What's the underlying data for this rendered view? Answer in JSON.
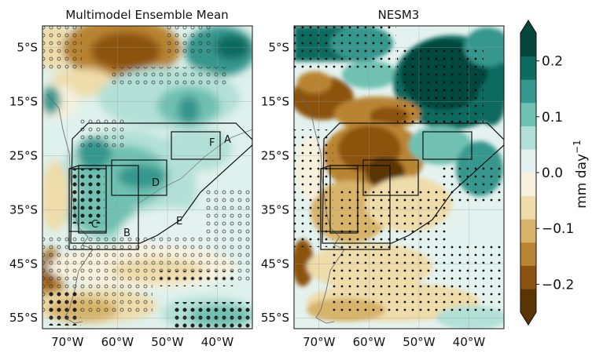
{
  "panels": [
    {
      "title": "Multimodel Ensemble Mean",
      "regions": [
        {
          "letter": "A"
        },
        {
          "letter": "B"
        },
        {
          "letter": "C"
        },
        {
          "letter": "D"
        },
        {
          "letter": "E"
        },
        {
          "letter": "F"
        }
      ]
    },
    {
      "title": "NESM3"
    }
  ],
  "axes": {
    "lat_ticks": [
      "5°S",
      "15°S",
      "25°S",
      "35°S",
      "45°S",
      "55°S"
    ],
    "lon_ticks": [
      "70°W",
      "60°W",
      "50°W",
      "40°W"
    ],
    "lon_range": [
      -75,
      -33
    ],
    "lat_range": [
      -57,
      -1
    ]
  },
  "colorbar": {
    "label": "mm day",
    "label_exponent": "−1",
    "ticks": [
      "0.2",
      "0.1",
      "0.0",
      "−0.1",
      "−0.2"
    ],
    "tick_values": [
      0.2,
      0.1,
      0.0,
      -0.1,
      -0.2
    ],
    "range": [
      -0.25,
      0.25
    ],
    "colors": [
      "#5b3404",
      "#8c5310",
      "#b98433",
      "#d7b46a",
      "#eedcaa",
      "#f6f0dd",
      "#e4f2ef",
      "#b2e0d7",
      "#6fc1b2",
      "#35978d",
      "#0d6b5f",
      "#05473e"
    ]
  },
  "colors": {
    "ocean_blue": "#a8ddd3",
    "brown": "#a9712b",
    "dark_green": "#0b5e54"
  }
}
